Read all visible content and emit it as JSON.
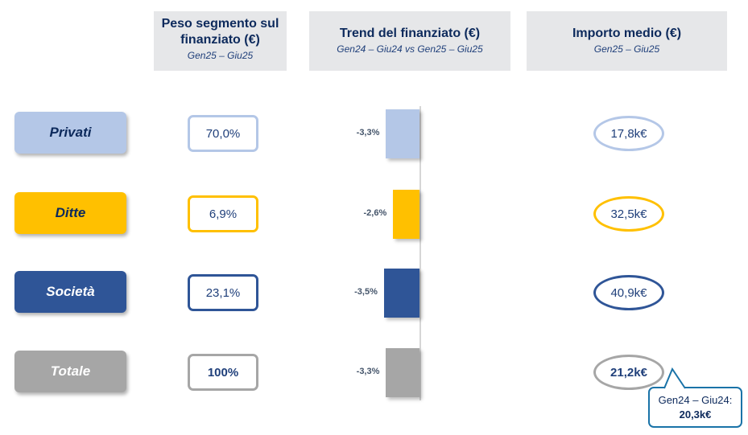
{
  "headers": [
    {
      "title": "Peso segmento sul finanziato (€)",
      "subtitle": "Gen25 – Giu25"
    },
    {
      "title": "Trend del finanziato (€)",
      "subtitle": "Gen24 – Giu24 vs Gen25 – Giu25"
    },
    {
      "title": "Importo medio (€)",
      "subtitle": "Gen25 – Giu25"
    }
  ],
  "chart_data": {
    "type": "bar",
    "title": "Trend del finanziato (€)",
    "categories": [
      "Privati",
      "Ditte",
      "Società",
      "Totale"
    ],
    "values": [
      -3.3,
      -2.6,
      -3.5,
      -3.3
    ],
    "labels": [
      "-3,3%",
      "-2,6%",
      "-3,5%",
      "-3,3%"
    ],
    "colors": [
      "#b4c7e7",
      "#ffc000",
      "#2f5597",
      "#a6a6a6"
    ]
  },
  "rows": [
    {
      "name": "Privati",
      "share": "70,0%",
      "avg": "17,8k€",
      "color": "#b4c7e7",
      "text": "#0d2a5c"
    },
    {
      "name": "Ditte",
      "share": "6,9%",
      "avg": "32,5k€",
      "color": "#ffc000",
      "text": "#0d2a5c"
    },
    {
      "name": "Società",
      "share": "23,1%",
      "avg": "40,9k€",
      "color": "#2f5597",
      "text": "#ffffff"
    },
    {
      "name": "Totale",
      "share": "100%",
      "avg": "21,2k€",
      "color": "#a6a6a6",
      "text": "#ffffff"
    }
  ],
  "callout": {
    "line1": "Gen24 – Giu24:",
    "line2": "20,3k€"
  }
}
